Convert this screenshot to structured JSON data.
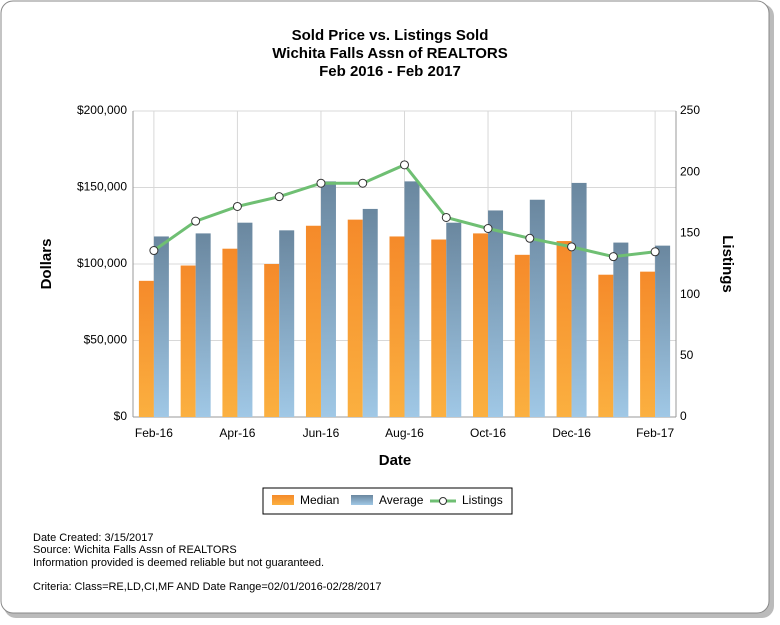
{
  "chart_data": {
    "type": "bar_line",
    "title": [
      "Sold Price vs. Listings Sold",
      "Wichita Falls Assn of REALTORS",
      "Feb 2016 - Feb 2017"
    ],
    "x_label": "Date",
    "y_label": "Dollars",
    "y2_label": "Listings",
    "categories": [
      "Feb-16",
      null,
      "Apr-16",
      null,
      "Jun-16",
      null,
      "Aug-16",
      null,
      "Oct-16",
      null,
      "Dec-16",
      null,
      "Feb-17"
    ],
    "series": [
      {
        "name": "Median",
        "type": "bar",
        "color": "#f28c28",
        "values": [
          89000,
          99000,
          110000,
          100000,
          125000,
          129000,
          118000,
          116000,
          120000,
          106000,
          115000,
          93000,
          95000
        ]
      },
      {
        "name": "Average",
        "type": "bar",
        "color": "#6d8fab",
        "values": [
          118000,
          120000,
          127000,
          122000,
          154000,
          136000,
          154000,
          127000,
          135000,
          142000,
          153000,
          114000,
          112000
        ]
      },
      {
        "name": "Listings",
        "type": "line",
        "axis": "y2",
        "color": "#6fbf73",
        "values": [
          136,
          160,
          172,
          180,
          191,
          191,
          206,
          163,
          154,
          146,
          139,
          131,
          135
        ]
      }
    ],
    "ylim": [
      0,
      200000
    ],
    "yticks": [
      {
        "value": 0,
        "label": "$0"
      },
      {
        "value": 50000,
        "label": "$50,000"
      },
      {
        "value": 100000,
        "label": "$100,000"
      },
      {
        "value": 150000,
        "label": "$150,000"
      },
      {
        "value": 200000,
        "label": "$200,000"
      }
    ],
    "y2lim": [
      0,
      250
    ],
    "y2ticks": [
      0,
      50,
      100,
      150,
      200,
      250
    ],
    "grid": true
  },
  "notes": [
    "Date Created: 3/15/2017",
    "Source: Wichita Falls Assn of REALTORS",
    "Information provided is deemed reliable but not guaranteed.",
    "Criteria: Class=RE,LD,CI,MF AND Date Range=02/01/2016-02/28/2017"
  ]
}
